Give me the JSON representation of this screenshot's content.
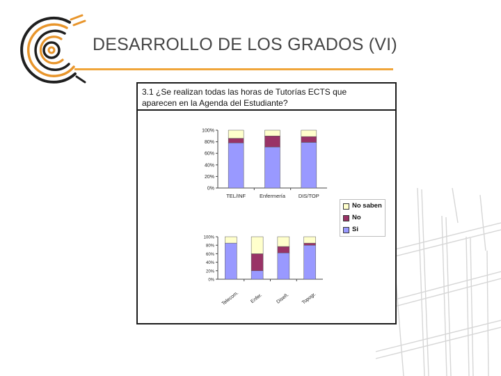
{
  "slide": {
    "title": "DESARROLLO DE LOS GRADOS (VI)",
    "question_line1": "3.1 ¿Se realizan todas las horas de Tutorías ECTS que",
    "question_line2": "aparecen en la Agenda del Estudiante?"
  },
  "colors": {
    "accent": "#f0a53a",
    "si": "#9999ff",
    "no": "#993366",
    "no_saben": "#ffffcc"
  },
  "chart_data": [
    {
      "type": "bar",
      "stacked": true,
      "percent": true,
      "categories": [
        "TEL/INF",
        "Enfermería",
        "DIS/TOP"
      ],
      "series": [
        {
          "name": "Si",
          "values": [
            78,
            71,
            79
          ]
        },
        {
          "name": "No",
          "values": [
            8,
            19,
            10
          ]
        },
        {
          "name": "No saben",
          "values": [
            14,
            10,
            11
          ]
        }
      ],
      "yticks": [
        "100%",
        "80%",
        "60%",
        "40%",
        "20%",
        "0%"
      ],
      "ylim": [
        0,
        100
      ],
      "legend": "right",
      "grid": false
    },
    {
      "type": "bar",
      "stacked": true,
      "percent": true,
      "categories": [
        "Telecom.",
        "Enfer.",
        "Diseñ.",
        "Topogr."
      ],
      "series": [
        {
          "name": "Si",
          "values": [
            85,
            20,
            62,
            80
          ]
        },
        {
          "name": "No",
          "values": [
            0,
            40,
            15,
            5
          ]
        },
        {
          "name": "No saben",
          "values": [
            15,
            40,
            23,
            15
          ]
        }
      ],
      "yticks": [
        "100%",
        "80%",
        "60%",
        "40%",
        "20%",
        "0%"
      ],
      "ylim": [
        0,
        100
      ],
      "grid": false
    }
  ]
}
